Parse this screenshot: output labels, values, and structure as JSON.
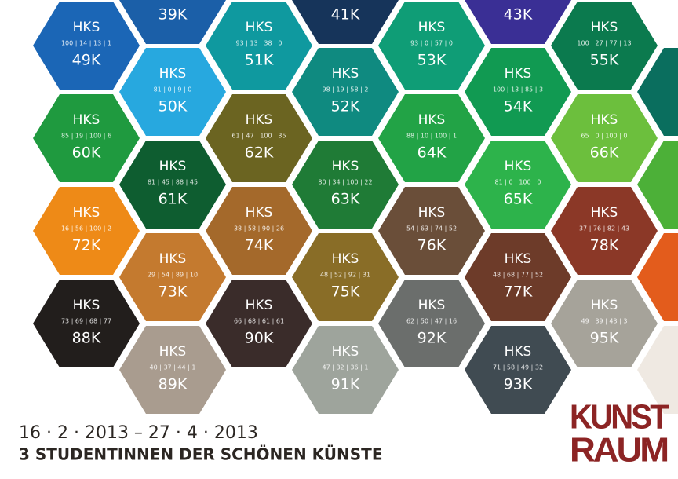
{
  "hexagons": [
    {
      "title": null,
      "code": null,
      "number": "39K",
      "color": "#1b5fa8"
    },
    {
      "title": null,
      "code": null,
      "number": "41K",
      "color": "#16345a"
    },
    {
      "title": null,
      "code": null,
      "number": "43K",
      "color": "#3a2f95"
    },
    {
      "title": "HKS",
      "code": "100 | 14 | 13 | 1",
      "number": "49K",
      "color": "#1b66b6"
    },
    {
      "title": "HKS",
      "code": "81 | 0 | 9 | 0",
      "number": "50K",
      "color": "#27a8df"
    },
    {
      "title": "HKS",
      "code": "93 | 13 | 38 | 0",
      "number": "51K",
      "color": "#0f999f"
    },
    {
      "title": "HKS",
      "code": "98 | 19 | 58 | 2",
      "number": "52K",
      "color": "#0f8a80"
    },
    {
      "title": "HKS",
      "code": "93 | 0 | 57 | 0",
      "number": "53K",
      "color": "#0f9d76"
    },
    {
      "title": "HKS",
      "code": "100 | 13 | 85 | 3",
      "number": "54K",
      "color": "#119a52"
    },
    {
      "title": "HKS",
      "code": "100 | 27 | 77 | 13",
      "number": "55K",
      "color": "#0b7a4e"
    },
    {
      "title": "HKS",
      "code": "85 | 19 | 100 | 6",
      "number": "60K",
      "color": "#1f9a3f"
    },
    {
      "title": "HKS",
      "code": "81 | 45 | 88 | 45",
      "number": "61K",
      "color": "#0e5d30"
    },
    {
      "title": "HKS",
      "code": "61 | 47 | 100 | 35",
      "number": "62K",
      "color": "#6b6421"
    },
    {
      "title": "HKS",
      "code": "80 | 34 | 100 | 22",
      "number": "63K",
      "color": "#1f7b36"
    },
    {
      "title": "HKS",
      "code": "88 | 10 | 100 | 1",
      "number": "64K",
      "color": "#22a346"
    },
    {
      "title": "HKS",
      "code": "81 | 0 | 100 | 0",
      "number": "65K",
      "color": "#2db34b"
    },
    {
      "title": "HKS",
      "code": "65 | 0 | 100 | 0",
      "number": "66K",
      "color": "#6cbf3d"
    },
    {
      "title": "HKS",
      "code": "16 | 56 | 100 | 2",
      "number": "72K",
      "color": "#ee8a17"
    },
    {
      "title": "HKS",
      "code": "29 | 54 | 89 | 10",
      "number": "73K",
      "color": "#c47a2f"
    },
    {
      "title": "HKS",
      "code": "38 | 58 | 90 | 26",
      "number": "74K",
      "color": "#a4692b"
    },
    {
      "title": "HKS",
      "code": "48 | 52 | 92 | 31",
      "number": "75K",
      "color": "#896d27"
    },
    {
      "title": "HKS",
      "code": "54 | 63 | 74 | 52",
      "number": "76K",
      "color": "#6a4e39"
    },
    {
      "title": "HKS",
      "code": "48 | 68 | 77 | 52",
      "number": "77K",
      "color": "#6d3b29"
    },
    {
      "title": "HKS",
      "code": "37 | 76 | 82 | 43",
      "number": "78K",
      "color": "#8b3827"
    },
    {
      "title": "HKS",
      "code": "73 | 69 | 68 | 77",
      "number": "88K",
      "color": "#221e1c"
    },
    {
      "title": "HKS",
      "code": "40 | 37 | 44 | 1",
      "number": "89K",
      "color": "#a99c8f"
    },
    {
      "title": "HKS",
      "code": "66 | 68 | 61 | 61",
      "number": "90K",
      "color": "#3a2c2a"
    },
    {
      "title": "HKS",
      "code": "47 | 32 | 36 | 1",
      "number": "91K",
      "color": "#9ea49c"
    },
    {
      "title": "HKS",
      "code": "62 | 50 | 47 | 16",
      "number": "92K",
      "color": "#6b6e6c"
    },
    {
      "title": "HKS",
      "code": "71 | 58 | 49 | 32",
      "number": "93K",
      "color": "#404b52"
    },
    {
      "title": "HKS",
      "code": "49 | 39 | 43 | 3",
      "number": "95K",
      "color": "#a6a39a"
    }
  ],
  "footer": {
    "dates": "16 · 2 · 2013 – 27 · 4 · 2013",
    "subtitle": "3 STUDENTINNEN DER SCHÖNEN KÜNSTE"
  },
  "logo": {
    "line1": "KUNST",
    "line2": "RAUM"
  }
}
